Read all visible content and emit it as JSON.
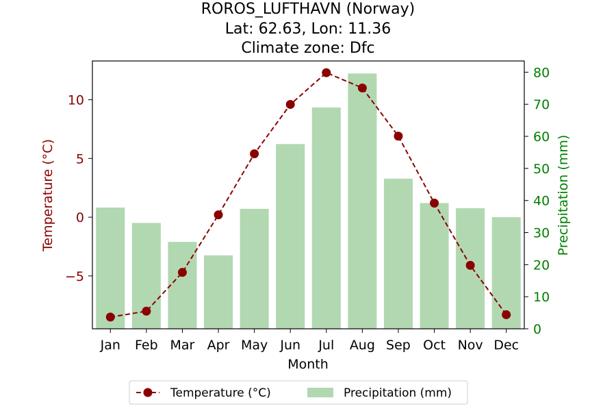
{
  "chart_data": {
    "type": "bar+line",
    "title_lines": [
      "ROROS_LUFTHAVN (Norway)",
      "Lat: 62.63, Lon: 11.36",
      "Climate zone: Dfc"
    ],
    "xlabel": "Month",
    "ylabel_left": "Temperature (°C)",
    "ylabel_right": "Precipitation (mm)",
    "categories": [
      "Jan",
      "Feb",
      "Mar",
      "Apr",
      "May",
      "Jun",
      "Jul",
      "Aug",
      "Sep",
      "Oct",
      "Nov",
      "Dec"
    ],
    "temperature": [
      -8.5,
      -8.0,
      -4.7,
      0.2,
      5.4,
      9.6,
      12.3,
      11.0,
      6.9,
      1.2,
      -4.1,
      -8.3
    ],
    "precipitation": [
      37.8,
      33.0,
      27.1,
      22.9,
      37.4,
      57.6,
      69.0,
      79.6,
      46.8,
      39.2,
      37.6,
      34.8
    ],
    "ylim_left": [
      -9.5,
      13.3
    ],
    "yticks_left": [
      -5,
      0,
      5,
      10
    ],
    "ylim_right": [
      0,
      83.5
    ],
    "yticks_right": [
      0,
      10,
      20,
      30,
      40,
      50,
      60,
      70,
      80
    ],
    "legend": [
      "Temperature (°C)",
      "Precipitation (mm)"
    ],
    "colors": {
      "temperature": "#8b0000",
      "precipitation": "#b2d8b2",
      "right_axis": "#008000"
    }
  }
}
